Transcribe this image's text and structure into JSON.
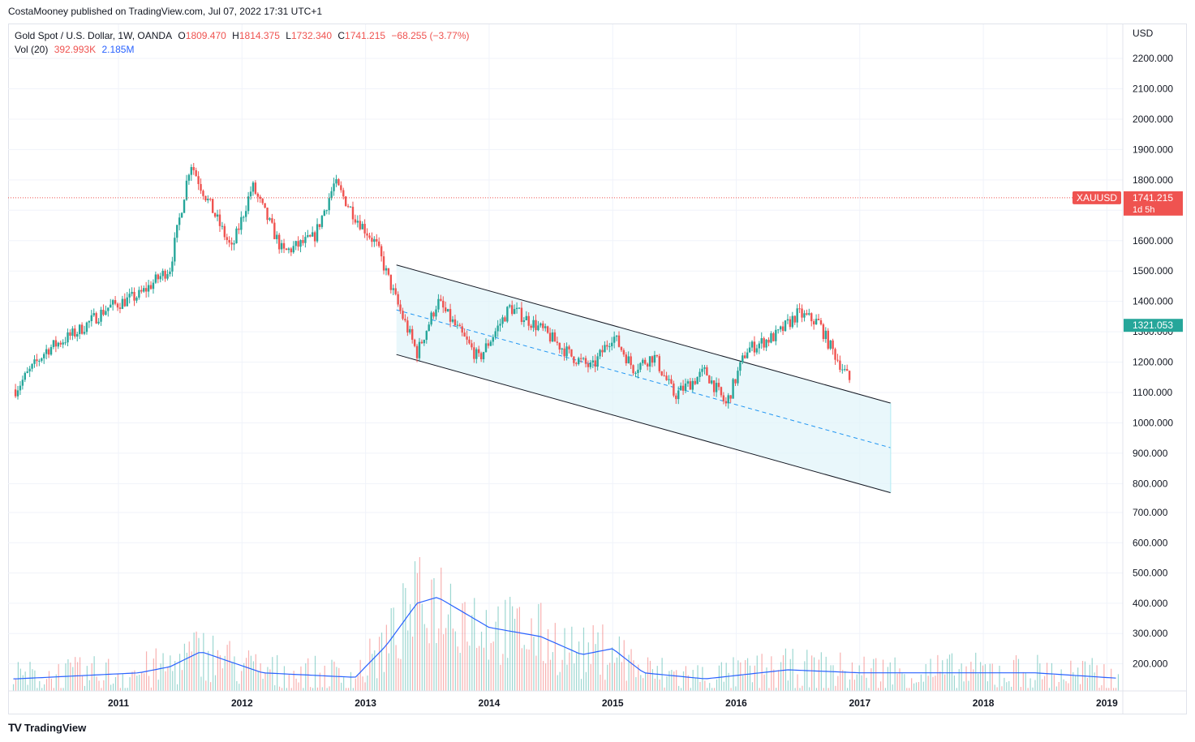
{
  "header": {
    "published": "CostaMooney published on TradingView.com, Jul 07, 2022 17:31 UTC+1"
  },
  "legend": {
    "symbol": "Gold Spot / U.S. Dollar, 1W, OANDA",
    "o_label": "O",
    "o": "1809.470",
    "h_label": "H",
    "h": "1814.375",
    "l_label": "L",
    "l": "1732.340",
    "c_label": "C",
    "c": "1741.215",
    "change": "−68.255 (−3.77%)",
    "vol_label": "Vol (20)",
    "vol_value": "392.993K",
    "vol_ma": "2.185M"
  },
  "footer": {
    "brand": "TradingView",
    "logo": "tradingview-logo-icon"
  },
  "colors": {
    "up": "#26a69a",
    "down": "#ef5350",
    "vol_ma": "#2962ff",
    "channel_fill": "#e0f4fa",
    "price_line": "#ef5350"
  },
  "chart_data": {
    "type": "candlestick",
    "symbol": "XAUUSD",
    "currency": "USD",
    "y_ticks": [
      800,
      900,
      1000,
      1100,
      1200,
      1300,
      1400,
      1500,
      1600,
      1700,
      1800,
      1900,
      2000,
      2100,
      2200
    ],
    "y_ticks_labels": [
      "800.000",
      "900.000",
      "1000.000",
      "1100.000",
      "1200.000",
      "1300.000",
      "1400.000",
      "1500.000",
      "1600.000",
      "1700.000",
      "1800.000",
      "1900.000",
      "2000.000",
      "2100.000",
      "2200.000"
    ],
    "vol_ticks_labels": [
      "200.000",
      "300.000",
      "400.000",
      "500.000",
      "600.000",
      "700.000"
    ],
    "x_labels": [
      "2011",
      "2012",
      "2013",
      "2014",
      "2015",
      "2016",
      "2017",
      "2018",
      "2019"
    ],
    "last_price": {
      "label": "XAUUSD",
      "value": "1741.215",
      "countdown": "1d 5h",
      "price": 1741.215
    },
    "marker": {
      "value": "1321.053",
      "price": 1321.053
    },
    "price_path": [
      [
        "2010-03",
        1110
      ],
      [
        "2010-06",
        1240
      ],
      [
        "2010-09",
        1300
      ],
      [
        "2010-12",
        1380
      ],
      [
        "2011-03",
        1420
      ],
      [
        "2011-06",
        1510
      ],
      [
        "2011-08",
        1860
      ],
      [
        "2011-09",
        1780
      ],
      [
        "2011-12",
        1570
      ],
      [
        "2012-02",
        1780
      ],
      [
        "2012-05",
        1560
      ],
      [
        "2012-08",
        1610
      ],
      [
        "2012-10",
        1790
      ],
      [
        "2012-12",
        1680
      ],
      [
        "2013-02",
        1590
      ],
      [
        "2013-04",
        1400
      ],
      [
        "2013-06",
        1230
      ],
      [
        "2013-08",
        1400
      ],
      [
        "2013-12",
        1210
      ],
      [
        "2014-03",
        1380
      ],
      [
        "2014-06",
        1310
      ],
      [
        "2014-09",
        1220
      ],
      [
        "2014-11",
        1180
      ],
      [
        "2015-01",
        1290
      ],
      [
        "2015-03",
        1180
      ],
      [
        "2015-05",
        1220
      ],
      [
        "2015-07",
        1090
      ],
      [
        "2015-10",
        1170
      ],
      [
        "2015-12",
        1060
      ],
      [
        "2016-02",
        1240
      ],
      [
        "2016-05",
        1290
      ],
      [
        "2016-07",
        1360
      ],
      [
        "2016-09",
        1330
      ],
      [
        "2016-10",
        1260
      ],
      [
        "2016-12",
        1140
      ]
    ],
    "channel": {
      "upper": [
        [
          "2013-04",
          1520
        ],
        [
          "2017-04",
          1065
        ]
      ],
      "lower": [
        [
          "2013-04",
          1225
        ],
        [
          "2017-04",
          770
        ]
      ],
      "mid": [
        [
          "2013-04",
          1372
        ],
        [
          "2017-04",
          918
        ]
      ]
    },
    "volume_ma_path": [
      [
        "2010-03",
        150
      ],
      [
        "2011-03",
        170
      ],
      [
        "2011-06",
        190
      ],
      [
        "2011-09",
        240
      ],
      [
        "2012-03",
        170
      ],
      [
        "2012-12",
        155
      ],
      [
        "2013-03",
        260
      ],
      [
        "2013-06",
        400
      ],
      [
        "2013-08",
        420
      ],
      [
        "2014-01",
        320
      ],
      [
        "2014-06",
        290
      ],
      [
        "2014-10",
        230
      ],
      [
        "2015-01",
        250
      ],
      [
        "2015-04",
        170
      ],
      [
        "2015-10",
        150
      ],
      [
        "2016-06",
        180
      ],
      [
        "2017-01",
        170
      ],
      [
        "2018-06",
        170
      ],
      [
        "2019-03",
        150
      ]
    ]
  }
}
